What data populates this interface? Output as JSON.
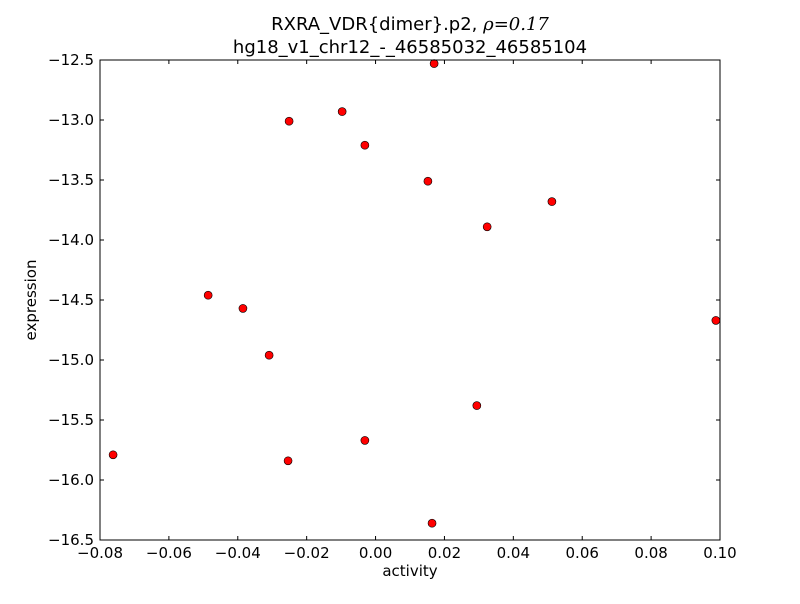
{
  "chart_data": {
    "type": "scatter",
    "title_line1_prefix": "RXRA_VDR{dimer}.p2, ",
    "title_rho": "ρ=0.17",
    "title_line2": "hg18_v1_chr12_-_46585032_46585104",
    "xlabel": "activity",
    "ylabel": "expression",
    "xlim": [
      -0.08,
      0.1
    ],
    "ylim": [
      -16.5,
      -12.5
    ],
    "xticks": [
      -0.08,
      -0.06,
      -0.04,
      -0.02,
      0.0,
      0.02,
      0.04,
      0.06,
      0.08,
      0.1
    ],
    "xtick_labels": [
      "−0.08",
      "−0.06",
      "−0.04",
      "−0.02",
      "0.00",
      "0.02",
      "0.04",
      "0.06",
      "0.08",
      "0.10"
    ],
    "yticks": [
      -12.5,
      -13.0,
      -13.5,
      -14.0,
      -14.5,
      -15.0,
      -15.5,
      -16.0,
      -16.5
    ],
    "ytick_labels": [
      "−12.5",
      "−13.0",
      "−13.5",
      "−14.0",
      "−14.5",
      "−15.0",
      "−15.5",
      "−16.0",
      "−16.5"
    ],
    "marker_color": "#ff0000",
    "points": [
      {
        "x": 0.017,
        "y": -12.53
      },
      {
        "x": -0.0097,
        "y": -12.93
      },
      {
        "x": -0.0251,
        "y": -13.01
      },
      {
        "x": -0.0031,
        "y": -13.21
      },
      {
        "x": 0.0152,
        "y": -13.51
      },
      {
        "x": 0.0512,
        "y": -13.68
      },
      {
        "x": 0.0324,
        "y": -13.89
      },
      {
        "x": -0.0486,
        "y": -14.46
      },
      {
        "x": -0.0385,
        "y": -14.57
      },
      {
        "x": 0.0988,
        "y": -14.67
      },
      {
        "x": -0.0309,
        "y": -14.96
      },
      {
        "x": 0.0294,
        "y": -15.38
      },
      {
        "x": -0.0031,
        "y": -15.67
      },
      {
        "x": -0.0762,
        "y": -15.79
      },
      {
        "x": -0.0254,
        "y": -15.84
      },
      {
        "x": 0.0164,
        "y": -16.36
      }
    ]
  }
}
